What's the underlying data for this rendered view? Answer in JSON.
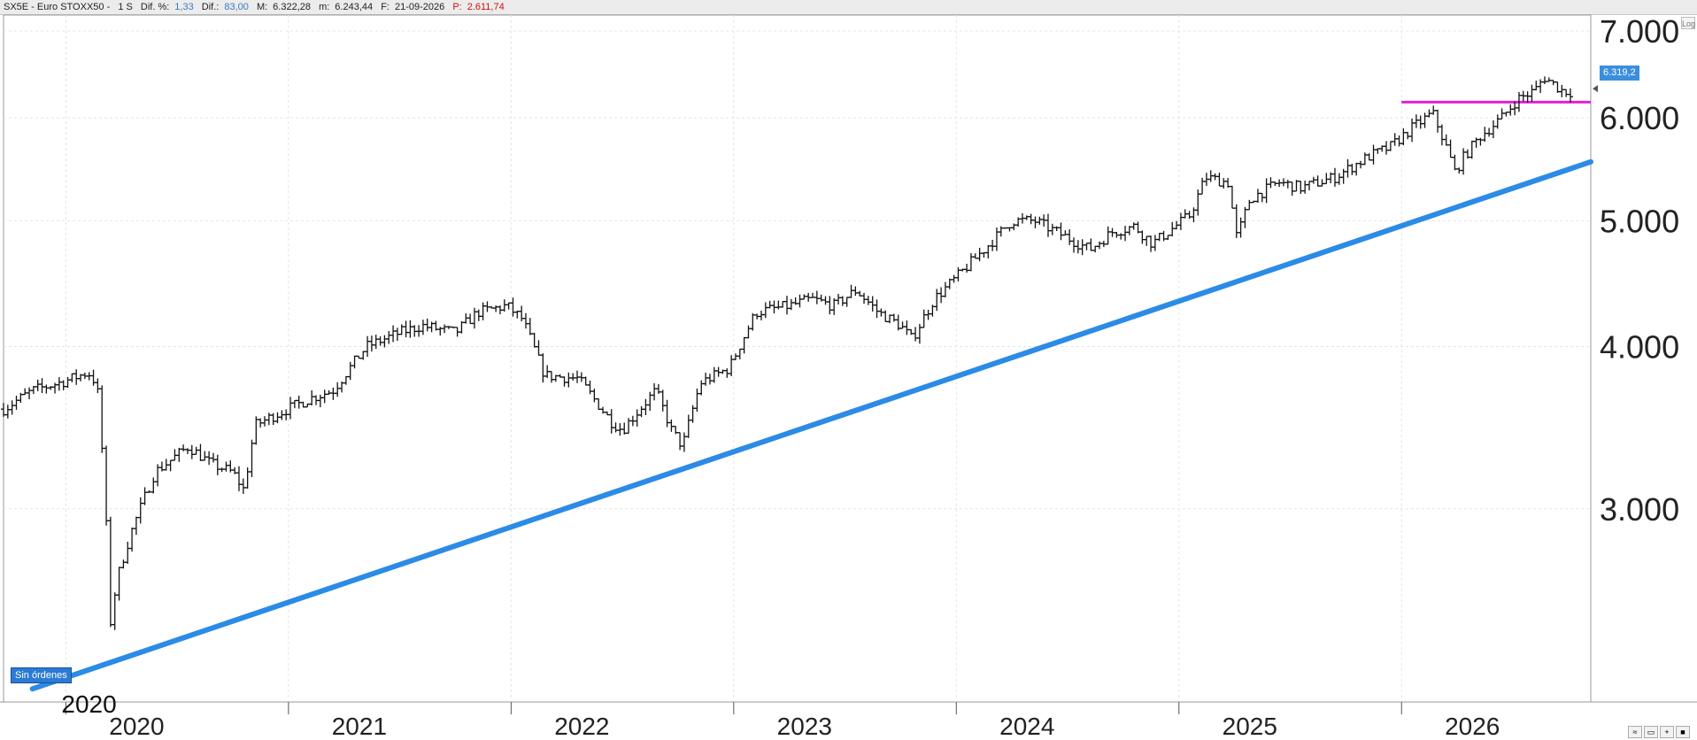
{
  "header": {
    "symbol": "SX5E - Euro STOXX50 -",
    "period": "1 S",
    "dif_pct_label": "Dif. %:",
    "dif_pct_value": "1,33",
    "dif_label": "Dif.:",
    "dif_value": "83,00",
    "max_label": "M:",
    "max_value": "6.322,28",
    "min_label": "m:",
    "min_value": "6.243,44",
    "date_label": "F:",
    "date_value": "21-09-2026",
    "p_label": "P:",
    "p_value": "2.611,74"
  },
  "controls": {
    "log_label": "Log",
    "orders_label": "Sin órdenes"
  },
  "last_price_label": "6.319,2",
  "colors": {
    "bars": "#111111",
    "support_line": "#2b8be6",
    "resistance_line": "#e020d8",
    "price_tag": "#3b8ede",
    "grid": "#e4e4e4"
  },
  "chart_data": {
    "type": "ohlc",
    "scale": "log",
    "title": "",
    "y_ticks": [
      3000,
      4000,
      5000,
      6000,
      7000
    ],
    "y_tick_labels": [
      "3.000",
      "4.000",
      "5.000",
      "6.000",
      "7.000"
    ],
    "ylim": [
      2130,
      7200
    ],
    "xlim": [
      2019.72,
      2026.85
    ],
    "x_ticks": [
      2020,
      2021,
      2022,
      2023,
      2024,
      2025,
      2026
    ],
    "x_tick_labels": [
      "2020",
      "2021",
      "2022",
      "2023",
      "2024",
      "2025",
      "2026"
    ],
    "bar_frequency": "weekly",
    "grid": true,
    "price_anchors": [
      [
        2019.72,
        3580
      ],
      [
        2019.85,
        3700
      ],
      [
        2019.99,
        3760
      ],
      [
        2020.1,
        3820
      ],
      [
        2020.14,
        3740
      ],
      [
        2020.17,
        3200
      ],
      [
        2020.2,
        2450
      ],
      [
        2020.23,
        2650
      ],
      [
        2020.3,
        2900
      ],
      [
        2020.4,
        3200
      ],
      [
        2020.48,
        3280
      ],
      [
        2020.55,
        3350
      ],
      [
        2020.65,
        3250
      ],
      [
        2020.75,
        3200
      ],
      [
        2020.8,
        3100
      ],
      [
        2020.85,
        3480
      ],
      [
        2020.95,
        3550
      ],
      [
        2021.1,
        3650
      ],
      [
        2021.2,
        3700
      ],
      [
        2021.35,
        4000
      ],
      [
        2021.5,
        4100
      ],
      [
        2021.6,
        4150
      ],
      [
        2021.75,
        4100
      ],
      [
        2021.85,
        4250
      ],
      [
        2021.98,
        4300
      ],
      [
        2022.05,
        4200
      ],
      [
        2022.15,
        3800
      ],
      [
        2022.3,
        3780
      ],
      [
        2022.45,
        3500
      ],
      [
        2022.5,
        3450
      ],
      [
        2022.65,
        3700
      ],
      [
        2022.72,
        3450
      ],
      [
        2022.77,
        3350
      ],
      [
        2022.85,
        3750
      ],
      [
        2022.98,
        3850
      ],
      [
        2023.1,
        4250
      ],
      [
        2023.25,
        4300
      ],
      [
        2023.35,
        4350
      ],
      [
        2023.45,
        4300
      ],
      [
        2023.55,
        4420
      ],
      [
        2023.65,
        4250
      ],
      [
        2023.75,
        4150
      ],
      [
        2023.8,
        4050
      ],
      [
        2023.9,
        4350
      ],
      [
        2024.0,
        4520
      ],
      [
        2024.15,
        4800
      ],
      [
        2024.25,
        5000
      ],
      [
        2024.35,
        5000
      ],
      [
        2024.45,
        4900
      ],
      [
        2024.55,
        4800
      ],
      [
        2024.6,
        4750
      ],
      [
        2024.7,
        4900
      ],
      [
        2024.8,
        4950
      ],
      [
        2024.88,
        4800
      ],
      [
        2024.95,
        4900
      ],
      [
        2025.05,
        5050
      ],
      [
        2025.12,
        5400
      ],
      [
        2025.22,
        5350
      ],
      [
        2025.26,
        4850
      ],
      [
        2025.32,
        5200
      ],
      [
        2025.45,
        5350
      ],
      [
        2025.55,
        5300
      ],
      [
        2025.7,
        5400
      ],
      [
        2025.85,
        5600
      ],
      [
        2025.95,
        5700
      ],
      [
        2026.05,
        5900
      ],
      [
        2026.14,
        6050
      ],
      [
        2026.2,
        5700
      ],
      [
        2026.24,
        5450
      ],
      [
        2026.28,
        5600
      ],
      [
        2026.35,
        5800
      ],
      [
        2026.45,
        6000
      ],
      [
        2026.52,
        6200
      ],
      [
        2026.6,
        6300
      ],
      [
        2026.64,
        6450
      ],
      [
        2026.72,
        6300
      ],
      [
        2026.77,
        6280
      ]
    ],
    "support_line": {
      "from": [
        2019.85,
        2180
      ],
      "to": [
        2026.85,
        5550
      ]
    },
    "resistance_line": {
      "from": [
        2026.0,
        6170
      ],
      "to": [
        2026.85,
        6170
      ]
    },
    "last_price": 6319.2,
    "annotations": [
      {
        "text": "2020",
        "x": 2020.0,
        "y": 2150
      }
    ]
  }
}
